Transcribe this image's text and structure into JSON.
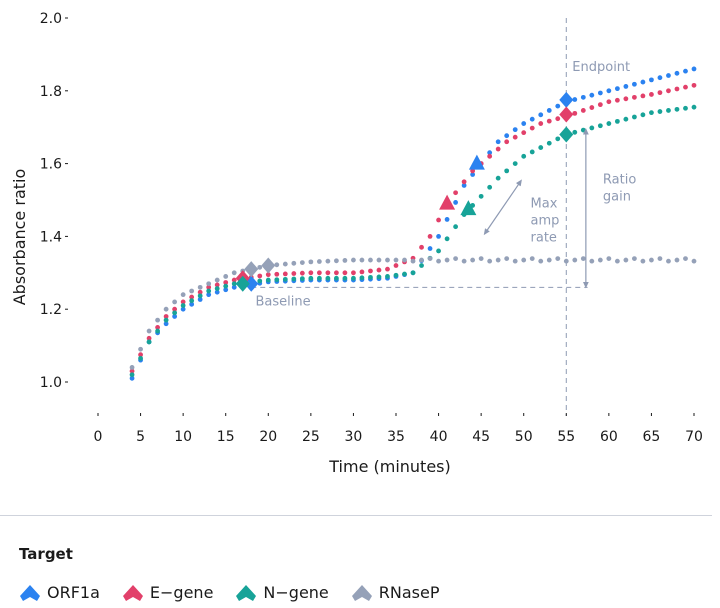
{
  "chart_data": {
    "type": "scatter",
    "xlabel": "Time (minutes)",
    "ylabel": "Absorbance ratio",
    "xlim": [
      0,
      70
    ],
    "ylim": [
      1.0,
      2.0
    ],
    "x_ticks": [
      "0",
      "5",
      "10",
      "15",
      "20",
      "25",
      "30",
      "35",
      "40",
      "45",
      "50",
      "55",
      "60",
      "65",
      "70"
    ],
    "y_ticks": [
      "1.0",
      "1.2",
      "1.4",
      "1.6",
      "1.8",
      "2.0"
    ],
    "legend_title": "Target",
    "legend_position": "bottom",
    "series": [
      {
        "name": "ORF1a",
        "color": "#2b82f0",
        "anchors": [
          [
            4,
            1.01
          ],
          [
            6,
            1.11
          ],
          [
            8,
            1.16
          ],
          [
            10,
            1.2
          ],
          [
            13,
            1.24
          ],
          [
            16,
            1.26
          ],
          [
            20,
            1.275
          ],
          [
            25,
            1.28
          ],
          [
            30,
            1.28
          ],
          [
            34,
            1.285
          ],
          [
            37,
            1.3
          ],
          [
            40,
            1.4
          ],
          [
            43,
            1.54
          ],
          [
            47,
            1.66
          ],
          [
            50,
            1.71
          ],
          [
            55,
            1.77
          ],
          [
            60,
            1.8
          ],
          [
            65,
            1.83
          ],
          [
            70,
            1.86
          ]
        ],
        "markers": [
          [
            18,
            1.27
          ],
          [
            44.5,
            1.6
          ],
          [
            55,
            1.775
          ]
        ]
      },
      {
        "name": "E-gene",
        "color": "#e2406a",
        "anchors": [
          [
            4,
            1.03
          ],
          [
            6,
            1.12
          ],
          [
            8,
            1.18
          ],
          [
            10,
            1.22
          ],
          [
            13,
            1.26
          ],
          [
            16,
            1.28
          ],
          [
            20,
            1.295
          ],
          [
            25,
            1.3
          ],
          [
            30,
            1.3
          ],
          [
            34,
            1.31
          ],
          [
            37,
            1.34
          ],
          [
            39,
            1.4
          ],
          [
            41,
            1.49
          ],
          [
            44,
            1.58
          ],
          [
            48,
            1.66
          ],
          [
            52,
            1.71
          ],
          [
            55,
            1.73
          ],
          [
            60,
            1.77
          ],
          [
            65,
            1.79
          ],
          [
            70,
            1.815
          ]
        ],
        "markers": [
          [
            17,
            1.285
          ],
          [
            41,
            1.49
          ],
          [
            55,
            1.735
          ]
        ]
      },
      {
        "name": "N-gene",
        "color": "#17a398",
        "anchors": [
          [
            4,
            1.02
          ],
          [
            6,
            1.11
          ],
          [
            8,
            1.17
          ],
          [
            10,
            1.21
          ],
          [
            13,
            1.25
          ],
          [
            16,
            1.27
          ],
          [
            20,
            1.28
          ],
          [
            25,
            1.285
          ],
          [
            30,
            1.285
          ],
          [
            34,
            1.29
          ],
          [
            37,
            1.3
          ],
          [
            40,
            1.36
          ],
          [
            43,
            1.46
          ],
          [
            47,
            1.56
          ],
          [
            50,
            1.62
          ],
          [
            55,
            1.68
          ],
          [
            60,
            1.71
          ],
          [
            65,
            1.74
          ],
          [
            70,
            1.755
          ]
        ],
        "markers": [
          [
            17,
            1.27
          ],
          [
            43.5,
            1.475
          ],
          [
            55,
            1.68
          ]
        ]
      },
      {
        "name": "RNaseP",
        "color": "#95a1b8",
        "anchors": [
          [
            4,
            1.04
          ],
          [
            6,
            1.14
          ],
          [
            8,
            1.2
          ],
          [
            10,
            1.24
          ],
          [
            13,
            1.27
          ],
          [
            16,
            1.3
          ],
          [
            20,
            1.32
          ],
          [
            25,
            1.33
          ],
          [
            30,
            1.335
          ],
          [
            35,
            1.335
          ],
          [
            40,
            1.335
          ],
          [
            45,
            1.335
          ],
          [
            50,
            1.335
          ],
          [
            55,
            1.335
          ],
          [
            60,
            1.335
          ],
          [
            65,
            1.335
          ],
          [
            70,
            1.335
          ]
        ],
        "markers": [
          [
            18,
            1.31
          ],
          [
            20,
            1.32
          ]
        ]
      }
    ],
    "annotations": {
      "baseline": {
        "label": "Baseline",
        "y": 1.26
      },
      "endpoint": {
        "label": "Endpoint",
        "x": 55
      },
      "max_amp": {
        "label_lines": [
          "Max",
          "amp",
          "rate"
        ]
      },
      "ratio_gain": {
        "label_lines": [
          "Ratio",
          "gain"
        ]
      }
    }
  }
}
